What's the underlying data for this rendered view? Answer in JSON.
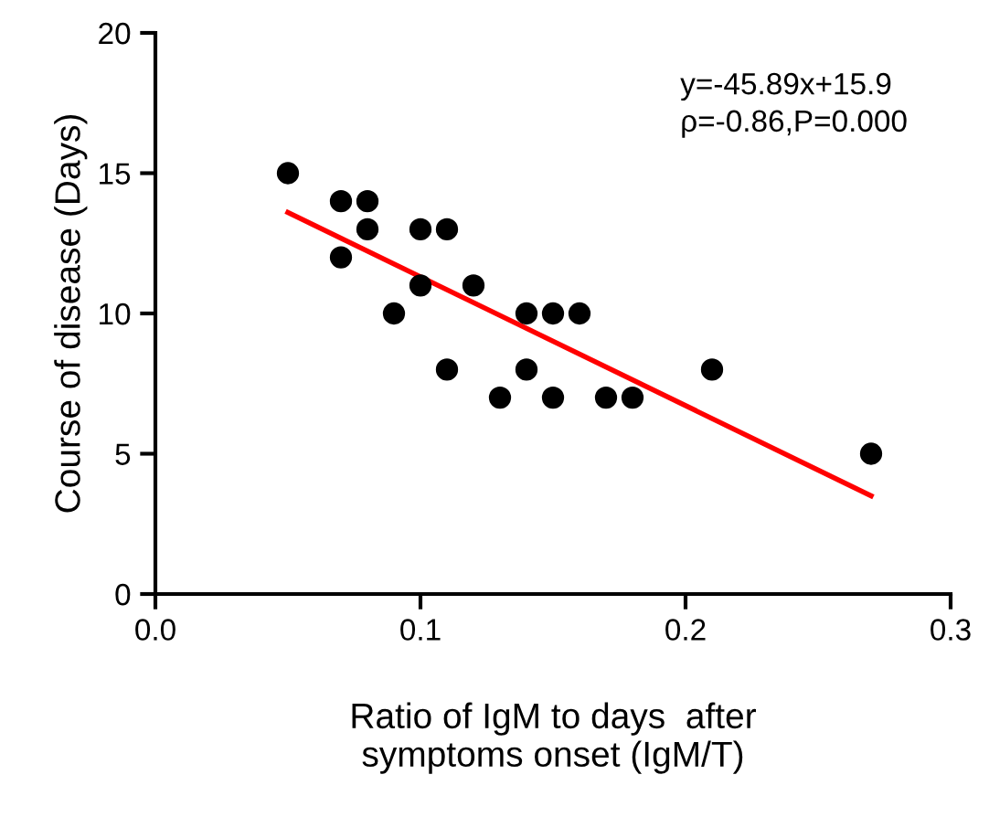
{
  "chart_data": {
    "type": "scatter",
    "xlabel": "Ratio of IgM to days  after\nsymptoms onset (IgM/T)",
    "ylabel": "Course of disease (Days)",
    "annotations": [
      "y=-45.89x+15.9\nρ=-0.86,P=0.000"
    ],
    "x": [
      0.05,
      0.07,
      0.07,
      0.08,
      0.08,
      0.09,
      0.1,
      0.1,
      0.11,
      0.11,
      0.12,
      0.13,
      0.14,
      0.14,
      0.15,
      0.15,
      0.16,
      0.17,
      0.18,
      0.21,
      0.27
    ],
    "series": [
      {
        "color": "#000000",
        "marker": "circle",
        "values": [
          15,
          14,
          12,
          14,
          13,
          10,
          13,
          11,
          13,
          8,
          11,
          7,
          10,
          8,
          10,
          7,
          10,
          7,
          7,
          8,
          5
        ]
      },
      {
        "type": "line",
        "color": "#ff0000",
        "x": [
          0.05,
          0.27
        ],
        "values": [
          13.6,
          3.5
        ]
      }
    ],
    "xlim": [
      0,
      0.3
    ],
    "xticks": [
      {
        "value": 0,
        "label": "0.0"
      },
      0.1,
      0.2,
      0.3
    ],
    "ylim": [
      0,
      20
    ],
    "yticks": [
      0,
      5,
      10,
      15,
      20
    ],
    "grid": false,
    "legend": false
  }
}
